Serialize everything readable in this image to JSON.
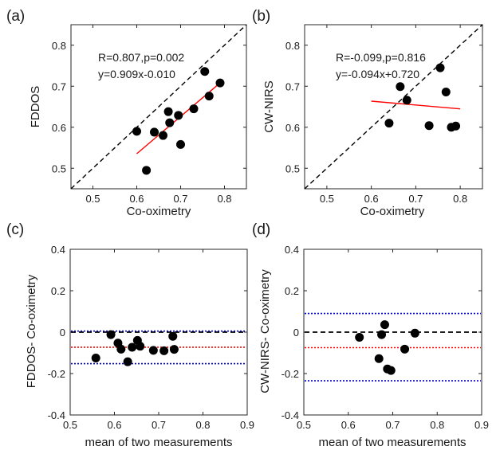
{
  "chart_data": [
    {
      "panel": "(a)",
      "type": "scatter",
      "xlabel": "Co-oximetry",
      "ylabel": "FDDOS",
      "xlim": [
        0.45,
        0.85
      ],
      "ylim": [
        0.45,
        0.85
      ],
      "xticks": [
        "0.5",
        "0.6",
        "0.7",
        "0.8"
      ],
      "yticks": [
        "0.5",
        "0.6",
        "0.7",
        "0.8"
      ],
      "annotations": [
        "R=0.807,p=0.002",
        "y=0.909x-0.010"
      ],
      "identity_line": true,
      "fit_line": {
        "slope": 0.909,
        "intercept": -0.01,
        "x_range": [
          0.6,
          0.79
        ]
      },
      "points": [
        {
          "x": 0.6,
          "y": 0.59
        },
        {
          "x": 0.622,
          "y": 0.495
        },
        {
          "x": 0.64,
          "y": 0.588
        },
        {
          "x": 0.66,
          "y": 0.58
        },
        {
          "x": 0.672,
          "y": 0.638
        },
        {
          "x": 0.675,
          "y": 0.611
        },
        {
          "x": 0.695,
          "y": 0.629
        },
        {
          "x": 0.7,
          "y": 0.558
        },
        {
          "x": 0.73,
          "y": 0.645
        },
        {
          "x": 0.755,
          "y": 0.736
        },
        {
          "x": 0.765,
          "y": 0.676
        },
        {
          "x": 0.79,
          "y": 0.708
        }
      ]
    },
    {
      "panel": "(b)",
      "type": "scatter",
      "xlabel": "Co-oximetry",
      "ylabel": "CW-NIRS",
      "xlim": [
        0.45,
        0.85
      ],
      "ylim": [
        0.45,
        0.85
      ],
      "xticks": [
        "0.5",
        "0.6",
        "0.7",
        "0.8"
      ],
      "yticks": [
        "0.5",
        "0.6",
        "0.7",
        "0.8"
      ],
      "annotations": [
        "R=-0.099,p=0.816",
        "y=-0.094x+0.720"
      ],
      "identity_line": true,
      "fit_line": {
        "slope": -0.094,
        "intercept": 0.72,
        "x_range": [
          0.6,
          0.8
        ]
      },
      "points": [
        {
          "x": 0.64,
          "y": 0.61
        },
        {
          "x": 0.665,
          "y": 0.699
        },
        {
          "x": 0.68,
          "y": 0.666
        },
        {
          "x": 0.73,
          "y": 0.604
        },
        {
          "x": 0.755,
          "y": 0.745
        },
        {
          "x": 0.768,
          "y": 0.686
        },
        {
          "x": 0.78,
          "y": 0.6
        },
        {
          "x": 0.79,
          "y": 0.603
        }
      ]
    },
    {
      "panel": "(c)",
      "type": "scatter",
      "xlabel": "mean of two measurements",
      "ylabel": "FDDOS- Co-oximetry",
      "xlim": [
        0.5,
        0.9
      ],
      "ylim": [
        -0.4,
        0.4
      ],
      "xticks": [
        "0.5",
        "0.6",
        "0.7",
        "0.8",
        "0.9"
      ],
      "yticks": [
        "-0.4",
        "-0.2",
        "0",
        "0.2",
        "0.4"
      ],
      "hlines": [
        {
          "y": 0.0,
          "color": "#000000",
          "style": "dashed"
        },
        {
          "y": -0.073,
          "color": "#ff0000",
          "style": "dotted"
        },
        {
          "y": -0.152,
          "color": "#0000cc",
          "style": "dotted"
        },
        {
          "y": 0.005,
          "color": "#0000cc",
          "style": "dotted"
        }
      ],
      "points": [
        {
          "x": 0.558,
          "y": -0.125
        },
        {
          "x": 0.592,
          "y": -0.012
        },
        {
          "x": 0.608,
          "y": -0.053
        },
        {
          "x": 0.615,
          "y": -0.082
        },
        {
          "x": 0.63,
          "y": -0.143
        },
        {
          "x": 0.64,
          "y": -0.073
        },
        {
          "x": 0.652,
          "y": -0.04
        },
        {
          "x": 0.658,
          "y": -0.068
        },
        {
          "x": 0.688,
          "y": -0.088
        },
        {
          "x": 0.712,
          "y": -0.09
        },
        {
          "x": 0.732,
          "y": -0.02
        },
        {
          "x": 0.735,
          "y": -0.083
        }
      ]
    },
    {
      "panel": "(d)",
      "type": "scatter",
      "xlabel": "mean of two measurements",
      "ylabel": "CW-NIRS- Co-oximetry",
      "xlim": [
        0.5,
        0.9
      ],
      "ylim": [
        -0.4,
        0.4
      ],
      "xticks": [
        "0.5",
        "0.6",
        "0.7",
        "0.8",
        "0.9"
      ],
      "yticks": [
        "-0.4",
        "-0.2",
        "0",
        "0.2",
        "0.4"
      ],
      "hlines": [
        {
          "y": 0.0,
          "color": "#000000",
          "style": "dashed"
        },
        {
          "y": -0.075,
          "color": "#ff0000",
          "style": "dotted"
        },
        {
          "y": -0.235,
          "color": "#0000cc",
          "style": "dotted"
        },
        {
          "y": 0.09,
          "color": "#0000cc",
          "style": "dotted"
        }
      ],
      "points": [
        {
          "x": 0.625,
          "y": -0.025
        },
        {
          "x": 0.669,
          "y": -0.128
        },
        {
          "x": 0.675,
          "y": -0.012
        },
        {
          "x": 0.682,
          "y": 0.036
        },
        {
          "x": 0.688,
          "y": -0.178
        },
        {
          "x": 0.696,
          "y": -0.185
        },
        {
          "x": 0.727,
          "y": -0.082
        },
        {
          "x": 0.75,
          "y": -0.005
        }
      ]
    }
  ]
}
